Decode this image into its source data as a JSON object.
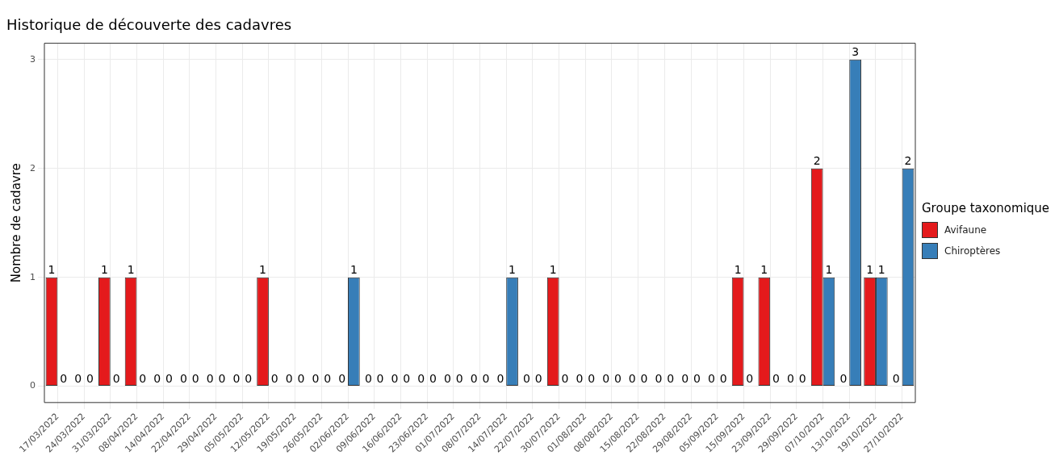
{
  "chart_data": {
    "type": "bar",
    "title": "Historique de découverte des cadavres",
    "ylabel": "Nombre de cadavre",
    "legend_title": "Groupe taxonomique",
    "categories": [
      "17/03/2022",
      "24/03/2022",
      "31/03/2022",
      "08/04/2022",
      "14/04/2022",
      "22/04/2022",
      "29/04/2022",
      "05/05/2022",
      "12/05/2022",
      "19/05/2022",
      "26/05/2022",
      "02/06/2022",
      "09/06/2022",
      "16/06/2022",
      "23/06/2022",
      "01/07/2022",
      "08/07/2022",
      "14/07/2022",
      "22/07/2022",
      "30/07/2022",
      "01/08/2022",
      "08/08/2022",
      "15/08/2022",
      "22/08/2022",
      "29/08/2022",
      "05/09/2022",
      "15/09/2022",
      "23/09/2022",
      "29/09/2022",
      "07/10/2022",
      "13/10/2022",
      "19/10/2022",
      "27/10/2022"
    ],
    "series": [
      {
        "name": "Avifaune",
        "color": "#e41a1c",
        "values": [
          1,
          0,
          1,
          1,
          0,
          0,
          0,
          0,
          1,
          0,
          0,
          0,
          0,
          0,
          0,
          0,
          0,
          0,
          0,
          1,
          0,
          0,
          0,
          0,
          0,
          0,
          1,
          1,
          0,
          2,
          0,
          1,
          0
        ]
      },
      {
        "name": "Chiroptères",
        "color": "#377eb8",
        "values": [
          0,
          0,
          0,
          0,
          0,
          0,
          0,
          0,
          0,
          0,
          0,
          1,
          0,
          0,
          0,
          0,
          0,
          1,
          0,
          0,
          0,
          0,
          0,
          0,
          0,
          0,
          0,
          0,
          0,
          1,
          3,
          1,
          2
        ]
      }
    ],
    "ylim": [
      -0.15,
      3.15
    ],
    "yticks": [
      0,
      1,
      2,
      3
    ],
    "grid": true,
    "legend": "right",
    "data_labels": true
  }
}
